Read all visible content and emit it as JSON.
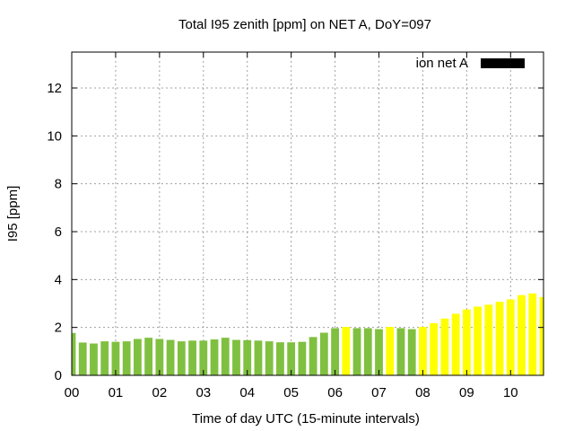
{
  "chart_data": {
    "type": "bar",
    "title": "Total I95 zenith [ppm] on NET A, DoY=097",
    "xlabel": "Time of day UTC (15-minute intervals)",
    "ylabel": "I95 [ppm]",
    "ylim": [
      0,
      13.5
    ],
    "yticks": [
      0,
      2,
      4,
      6,
      8,
      10,
      12
    ],
    "xlim": [
      0,
      10.75
    ],
    "xticks": [
      "00",
      "01",
      "02",
      "03",
      "04",
      "05",
      "06",
      "07",
      "08",
      "09",
      "10"
    ],
    "grid": true,
    "legend": {
      "position": "top-right",
      "entries": [
        {
          "name": "ion net A",
          "color": "#000000"
        }
      ]
    },
    "bar_interval_hours": 0.25,
    "colors": {
      "green": "#80c040",
      "yellow": "#ffff00"
    },
    "series": [
      {
        "name": "ion net A",
        "x": [
          0.0,
          0.25,
          0.5,
          0.75,
          1.0,
          1.25,
          1.5,
          1.75,
          2.0,
          2.25,
          2.5,
          2.75,
          3.0,
          3.25,
          3.5,
          3.75,
          4.0,
          4.25,
          4.5,
          4.75,
          5.0,
          5.25,
          5.5,
          5.75,
          6.0,
          6.25,
          6.5,
          6.75,
          7.0,
          7.25,
          7.5,
          7.75,
          8.0,
          8.25,
          8.5,
          8.75,
          9.0,
          9.25,
          9.5,
          9.75,
          10.0,
          10.25,
          10.5,
          10.75
        ],
        "values": [
          1.77,
          1.37,
          1.33,
          1.42,
          1.4,
          1.42,
          1.52,
          1.57,
          1.52,
          1.48,
          1.42,
          1.45,
          1.45,
          1.5,
          1.57,
          1.48,
          1.47,
          1.45,
          1.42,
          1.38,
          1.38,
          1.4,
          1.6,
          1.78,
          1.97,
          2.02,
          1.97,
          1.97,
          1.93,
          2.02,
          1.97,
          1.93,
          2.02,
          2.18,
          2.37,
          2.57,
          2.75,
          2.87,
          2.95,
          3.07,
          3.17,
          3.35,
          3.42,
          3.27
        ],
        "bar_colors": [
          "green",
          "green",
          "green",
          "green",
          "green",
          "green",
          "green",
          "green",
          "green",
          "green",
          "green",
          "green",
          "green",
          "green",
          "green",
          "green",
          "green",
          "green",
          "green",
          "green",
          "green",
          "green",
          "green",
          "green",
          "green",
          "yellow",
          "green",
          "green",
          "green",
          "yellow",
          "green",
          "green",
          "yellow",
          "yellow",
          "yellow",
          "yellow",
          "yellow",
          "yellow",
          "yellow",
          "yellow",
          "yellow",
          "yellow",
          "yellow",
          "yellow"
        ]
      }
    ]
  }
}
